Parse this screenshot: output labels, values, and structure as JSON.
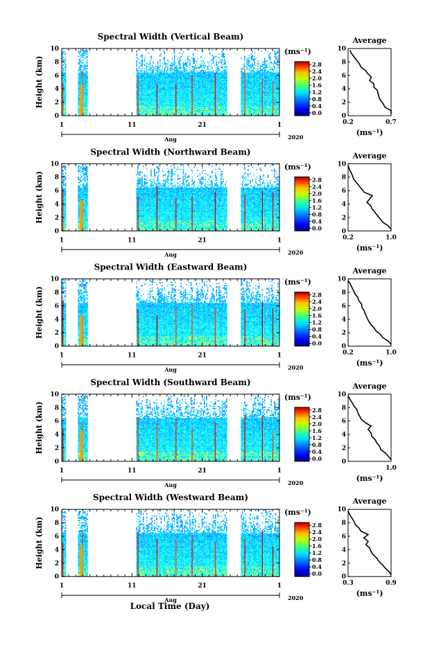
{
  "figure": {
    "xlabel": "Local Time (Day)",
    "month": "Aug",
    "year": "2020",
    "colorbar_unit": "(ms⁻¹)",
    "avg_title": "Average",
    "avg_xlabel": "(ms⁻¹)"
  },
  "chart_data": [
    {
      "type": "heatmap",
      "title": "Spectral Width (Vertical Beam)",
      "ylabel": "Height (km)",
      "xlabel": "Local Time (Day)",
      "x_ticks": [
        "1",
        "11",
        "21",
        "1"
      ],
      "x_month": "Aug",
      "x_year": "2020",
      "xlim_days": [
        1,
        32
      ],
      "ylim": [
        0,
        10
      ],
      "y_ticks": [
        "0",
        "2",
        "4",
        "6",
        "8",
        "10"
      ],
      "colorbar_ticks": [
        "0.0",
        "0.4",
        "0.8",
        "1.2",
        "1.6",
        "2.0",
        "2.4",
        "2.8"
      ],
      "data_periods_days": [
        [
          1,
          1.5
        ],
        [
          3.3,
          4.6
        ],
        [
          11.6,
          24.5
        ],
        [
          26.5,
          32
        ]
      ],
      "average_profile": {
        "x_ticks": [
          "0.2",
          "0.7"
        ],
        "xlim": [
          0.2,
          0.7
        ],
        "height_km": [
          0,
          0.5,
          1,
          1.5,
          2,
          2.5,
          3,
          3.5,
          4,
          4.5,
          5,
          5.5,
          6,
          6.5,
          7,
          7.5,
          8,
          8.5,
          9,
          9.5
        ],
        "width": [
          0.7,
          0.7,
          0.63,
          0.61,
          0.58,
          0.56,
          0.55,
          0.54,
          0.5,
          0.5,
          0.45,
          0.47,
          0.43,
          0.4,
          0.35,
          0.33,
          0.3,
          0.27,
          0.24,
          0.22
        ]
      }
    },
    {
      "type": "heatmap",
      "title": "Spectral Width (Northward Beam)",
      "ylabel": "Height (km)",
      "xlabel": "Local Time (Day)",
      "x_ticks": [
        "1",
        "11",
        "21",
        "1"
      ],
      "x_month": "Aug",
      "x_year": "2020",
      "xlim_days": [
        1,
        32
      ],
      "ylim": [
        0,
        10
      ],
      "y_ticks": [
        "0",
        "2",
        "4",
        "6",
        "8",
        "10"
      ],
      "colorbar_ticks": [
        "0.0",
        "0.4",
        "0.8",
        "1.2",
        "1.6",
        "2.0",
        "2.4",
        "2.8"
      ],
      "data_periods_days": [
        [
          1,
          1.5
        ],
        [
          3.3,
          4.6
        ],
        [
          11.6,
          24.5
        ],
        [
          26.5,
          32
        ]
      ],
      "average_profile": {
        "x_ticks": [
          "0.2",
          "1.0"
        ],
        "xlim": [
          0.2,
          1.0
        ],
        "height_km": [
          0,
          0.5,
          1,
          1.5,
          2,
          2.5,
          3,
          3.5,
          4,
          4.5,
          5,
          5.5,
          6,
          6.5,
          7,
          7.5,
          8,
          8.5,
          9,
          9.5
        ],
        "width": [
          1.0,
          0.95,
          0.85,
          0.8,
          0.75,
          0.7,
          0.65,
          0.62,
          0.55,
          0.6,
          0.65,
          0.5,
          0.45,
          0.4,
          0.35,
          0.3,
          0.28,
          0.25,
          0.22,
          0.2
        ]
      }
    },
    {
      "type": "heatmap",
      "title": "Spectral Width (Eastward Beam)",
      "ylabel": "Height (km)",
      "xlabel": "Local Time (Day)",
      "x_ticks": [
        "1",
        "11",
        "21",
        "1"
      ],
      "x_month": "Aug",
      "x_year": "2020",
      "xlim_days": [
        1,
        32
      ],
      "ylim": [
        0,
        10
      ],
      "y_ticks": [
        "0",
        "2",
        "4",
        "6",
        "8",
        "10"
      ],
      "colorbar_ticks": [
        "0.0",
        "0.4",
        "0.8",
        "1.2",
        "1.6",
        "2.0",
        "2.4",
        "2.8"
      ],
      "data_periods_days": [
        [
          1,
          1.5
        ],
        [
          3.3,
          4.6
        ],
        [
          11.6,
          24.5
        ],
        [
          26.5,
          32
        ]
      ],
      "average_profile": {
        "x_ticks": [
          "0.2",
          "1.0"
        ],
        "xlim": [
          0.2,
          1.0
        ],
        "height_km": [
          0,
          0.5,
          1,
          1.5,
          2,
          2.5,
          3,
          3.5,
          4,
          4.5,
          5,
          5.5,
          6,
          6.5,
          7,
          7.5,
          8,
          8.5,
          9,
          9.5
        ],
        "width": [
          1.0,
          0.95,
          0.85,
          0.8,
          0.72,
          0.68,
          0.62,
          0.58,
          0.55,
          0.52,
          0.5,
          0.46,
          0.45,
          0.4,
          0.38,
          0.33,
          0.3,
          0.27,
          0.24,
          0.2
        ]
      }
    },
    {
      "type": "heatmap",
      "title": "Spectral Width (Southward Beam)",
      "ylabel": "Height (km)",
      "xlabel": "Local Time (Day)",
      "x_ticks": [
        "1",
        "11",
        "21",
        "1"
      ],
      "x_month": "Aug",
      "x_year": "2020",
      "xlim_days": [
        1,
        32
      ],
      "ylim": [
        0,
        10
      ],
      "y_ticks": [
        "0",
        "2",
        "4",
        "6",
        "8",
        "10"
      ],
      "colorbar_ticks": [
        "0.0",
        "0.4",
        "0.8",
        "1.2",
        "1.6",
        "2.0",
        "2.4",
        "2.8"
      ],
      "data_periods_days": [
        [
          1,
          1.5
        ],
        [
          3.3,
          4.6
        ],
        [
          11.6,
          24.5
        ],
        [
          26.5,
          32
        ]
      ],
      "average_profile": {
        "x_ticks": [
          "1.0"
        ],
        "xlim": [
          0.25,
          1.0
        ],
        "height_km": [
          0,
          0.5,
          1,
          1.5,
          2,
          2.5,
          3,
          3.5,
          4,
          4.5,
          5,
          5.5,
          6,
          6.5,
          7,
          7.5,
          8,
          8.5,
          9,
          9.5
        ],
        "width": [
          1.0,
          0.95,
          0.9,
          0.82,
          0.8,
          0.75,
          0.72,
          0.66,
          0.65,
          0.6,
          0.65,
          0.55,
          0.48,
          0.45,
          0.42,
          0.4,
          0.35,
          0.32,
          0.28,
          0.25
        ]
      }
    },
    {
      "type": "heatmap",
      "title": "Spectral Width (Westward Beam)",
      "ylabel": "Height (km)",
      "xlabel": "Local Time (Day)",
      "x_ticks": [
        "1",
        "11",
        "21",
        "1"
      ],
      "x_month": "Aug",
      "x_year": "2020",
      "xlim_days": [
        1,
        32
      ],
      "ylim": [
        0,
        10
      ],
      "y_ticks": [
        "0",
        "2",
        "4",
        "6",
        "8",
        "10"
      ],
      "colorbar_ticks": [
        "0.0",
        "0.4",
        "0.8",
        "1.2",
        "1.6",
        "2.0",
        "2.4",
        "2.8"
      ],
      "data_periods_days": [
        [
          1,
          1.5
        ],
        [
          3.3,
          4.6
        ],
        [
          11.6,
          24.5
        ],
        [
          26.5,
          32
        ]
      ],
      "average_profile": {
        "x_ticks": [
          "0.3",
          "0.9"
        ],
        "xlim": [
          0.3,
          0.9
        ],
        "height_km": [
          0,
          0.5,
          1,
          1.5,
          2,
          2.5,
          3,
          3.5,
          4,
          4.5,
          5,
          5.5,
          6,
          6.5,
          7,
          7.5,
          8,
          8.5,
          9,
          9.5
        ],
        "width": [
          0.9,
          0.87,
          0.82,
          0.78,
          0.73,
          0.7,
          0.65,
          0.62,
          0.6,
          0.55,
          0.58,
          0.52,
          0.58,
          0.48,
          0.45,
          0.4,
          0.38,
          0.35,
          0.32,
          0.3
        ]
      }
    }
  ]
}
